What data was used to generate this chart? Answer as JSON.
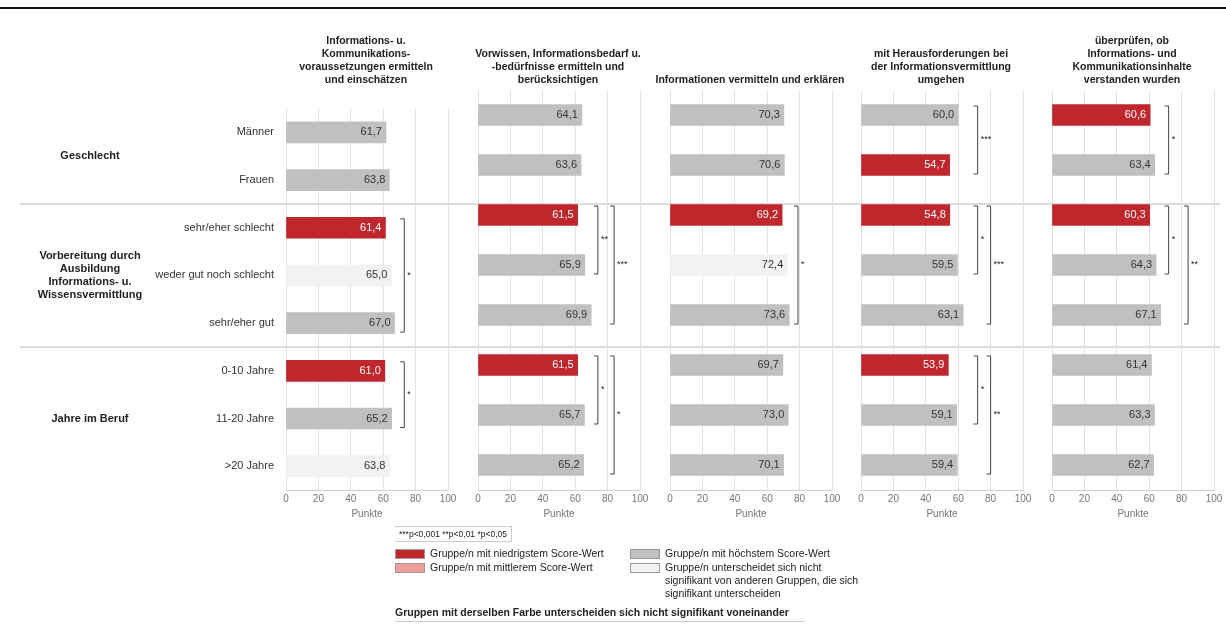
{
  "chart_data": [
    {
      "type": "bar",
      "orientation": "horizontal",
      "title": "Informations- u. Kommunikations-voraussetzungen ermitteln und einschätzen",
      "xlabel": "Punkte",
      "categories": [
        "Männer",
        "Frauen",
        "sehr/eher schlecht",
        "weder gut noch schlecht",
        "sehr/eher gut",
        "0-10 Jahre",
        "11-20 Jahre",
        ">20 Jahre"
      ],
      "values": [
        61.7,
        63.8,
        61.4,
        65.0,
        67.0,
        61.0,
        65.2,
        63.8
      ],
      "colors": [
        "#c0c0c0",
        "#c0c0c0",
        "#c0272d",
        "#f2f2f2",
        "#c0c0c0",
        "#c0272d",
        "#c0c0c0",
        "#f2f2f2"
      ],
      "value_labels": [
        "61,7",
        "63,8",
        "61,4",
        "65,0",
        "67,0",
        "61,0",
        "65,2",
        "63,8"
      ],
      "xlim": [
        0,
        100
      ],
      "xticks": [
        0,
        20,
        40,
        60,
        80,
        100
      ],
      "grid": "x",
      "annotations": [
        "Geschlecht",
        "Vorbereitung durch Ausbildung Informations- u. Wissensvermittlung",
        "Jahre im Beruf",
        "*",
        "*"
      ]
    },
    {
      "type": "bar",
      "orientation": "horizontal",
      "title": "Vorwissen, Informationsbedarf u. -bedürfnisse ermitteln und berücksichtigen",
      "xlabel": "Punkte",
      "categories": [
        null,
        null,
        null,
        null,
        null,
        null,
        null,
        null
      ],
      "values": [
        64.1,
        63.6,
        61.5,
        65.9,
        69.9,
        61.5,
        65.7,
        65.2
      ],
      "colors": [
        "#c0c0c0",
        "#c0c0c0",
        "#c0272d",
        "#c0c0c0",
        "#c0c0c0",
        "#c0272d",
        "#c0c0c0",
        "#c0c0c0"
      ],
      "value_labels": [
        "64,1",
        "63,6",
        "61,5",
        "65,9",
        "69,9",
        "61,5",
        "65,7",
        "65,2"
      ],
      "xlim": [
        0,
        100
      ],
      "xticks": [
        0,
        20,
        40,
        60,
        80,
        100
      ],
      "grid": "x",
      "tick_labels": "x",
      "annotations": [
        "**",
        "***",
        "*",
        "*"
      ]
    },
    {
      "type": "bar",
      "orientation": "horizontal",
      "title": "Informationen vermitteln und erklären",
      "xlabel": "Punkte",
      "categories": [
        null,
        null,
        null,
        null,
        null,
        null,
        null,
        null
      ],
      "values": [
        70.3,
        70.6,
        69.2,
        72.4,
        73.6,
        69.7,
        73.0,
        70.1
      ],
      "colors": [
        "#c0c0c0",
        "#c0c0c0",
        "#c0272d",
        "#f2f2f2",
        "#c0c0c0",
        "#c0c0c0",
        "#c0c0c0",
        "#c0c0c0"
      ],
      "value_labels": [
        "70,3",
        "70,6",
        "69,2",
        "72,4",
        "73,6",
        "69,7",
        "73,0",
        "70,1"
      ],
      "xlim": [
        0,
        100
      ],
      "xticks": [
        0,
        20,
        40,
        60,
        80,
        100
      ],
      "grid": "x",
      "tick_labels": "x",
      "annotations": [
        "*"
      ]
    },
    {
      "type": "bar",
      "orientation": "horizontal",
      "title": "mit Herausforderungen bei der Informationsvermittlung umgehen",
      "xlabel": "Punkte",
      "categories": [
        null,
        null,
        null,
        null,
        null,
        null,
        null,
        null
      ],
      "values": [
        60.0,
        54.7,
        54.8,
        59.5,
        63.1,
        53.9,
        59.1,
        59.4
      ],
      "colors": [
        "#c0c0c0",
        "#c0272d",
        "#c0272d",
        "#c0c0c0",
        "#c0c0c0",
        "#c0272d",
        "#c0c0c0",
        "#c0c0c0"
      ],
      "value_labels": [
        "60,0",
        "54,7",
        "54,8",
        "59,5",
        "63,1",
        "53,9",
        "59,1",
        "59,4"
      ],
      "xlim": [
        0,
        100
      ],
      "xticks": [
        0,
        20,
        40,
        60,
        80,
        100
      ],
      "grid": "x",
      "tick_labels": "x",
      "annotations": [
        "***",
        "*",
        "***",
        "*",
        "**"
      ]
    },
    {
      "type": "bar",
      "orientation": "horizontal",
      "title": "überprüfen, ob Informations- und Kommunikationsinhalte verstanden wurden",
      "xlabel": "Punkte",
      "categories": [
        null,
        null,
        null,
        null,
        null,
        null,
        null,
        null
      ],
      "values": [
        60.6,
        63.4,
        60.3,
        64.3,
        67.1,
        61.4,
        63.3,
        62.7
      ],
      "colors": [
        "#c0272d",
        "#c0c0c0",
        "#c0272d",
        "#c0c0c0",
        "#c0c0c0",
        "#c0c0c0",
        "#c0c0c0",
        "#c0c0c0"
      ],
      "value_labels": [
        "60,6",
        "63,4",
        "60,3",
        "64,3",
        "67,1",
        "61,4",
        "63,3",
        "62,7"
      ],
      "xlim": [
        0,
        100
      ],
      "xticks": [
        0,
        20,
        40,
        60,
        80,
        100
      ],
      "grid": "x",
      "tick_labels": "x",
      "annotations": [
        "*",
        "*",
        "**"
      ]
    },
    {
      "type": "other",
      "annotations": [
        "***p<0,001  **p<0,01  *p<0,05",
        "Gruppe/n mit niedrigstem Score-Wert",
        "Gruppe/n mit höchstem Score-Wert",
        "Gruppe/n mit mittlerem Score-Wert",
        "Gruppe/n unterscheidet sich nicht signifikant von anderen Gruppen, die sich signifikant unterscheiden",
        "Gruppen mit derselben Farbe unterscheiden sich nicht signifikant voneinander"
      ]
    }
  ]
}
